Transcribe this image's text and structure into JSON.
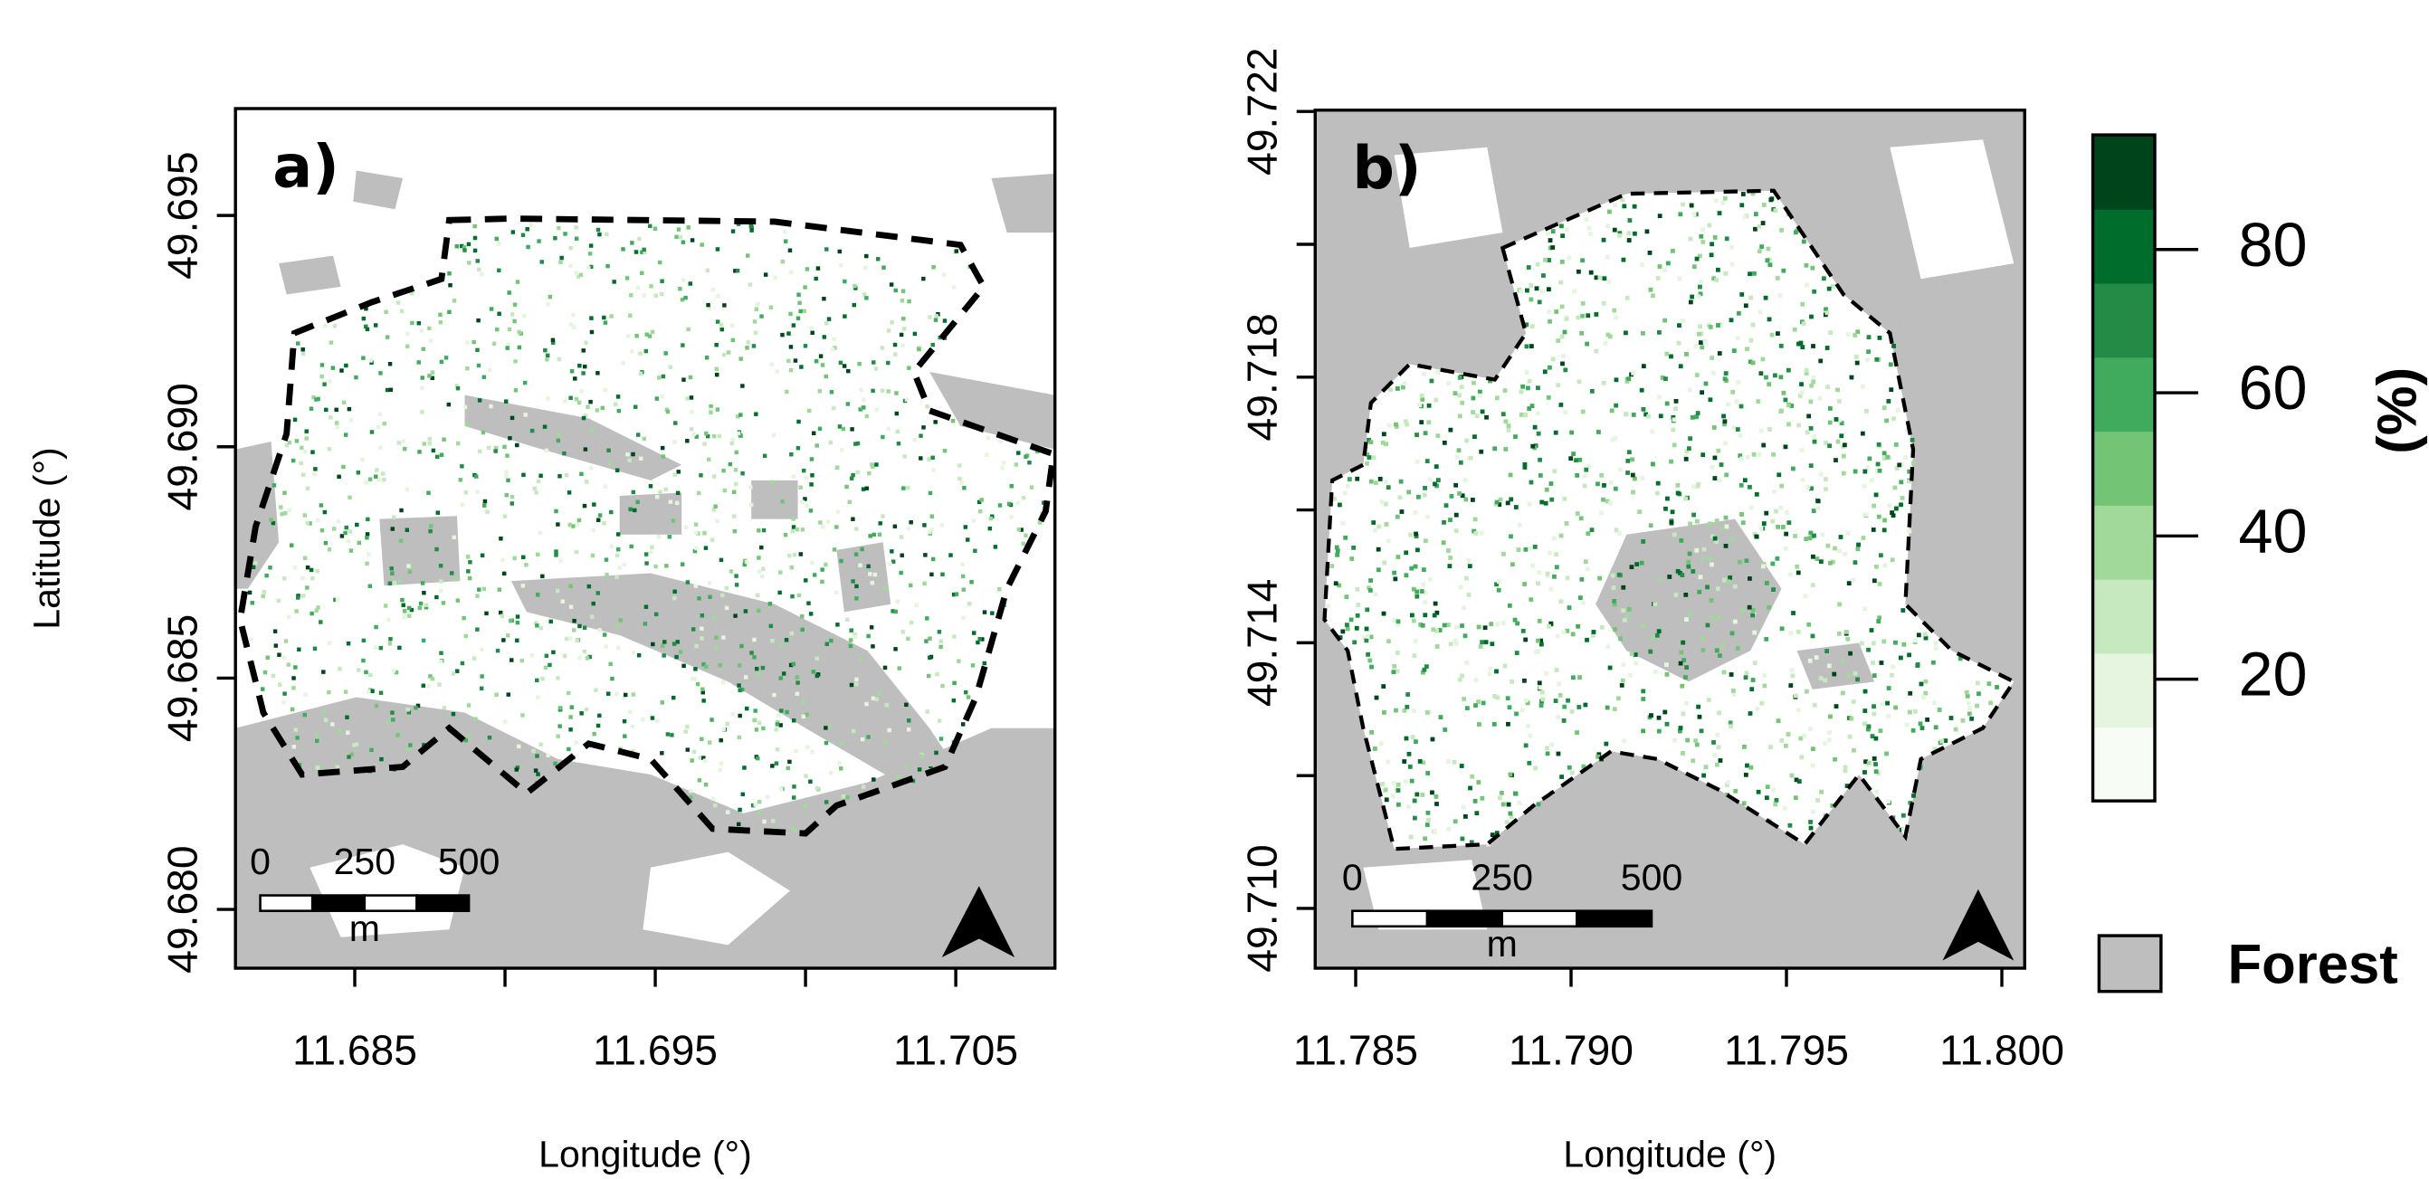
{
  "panels": [
    {
      "letter": "a)",
      "xlabel": "Longitude (°)",
      "ylabel": "Latitude (°)",
      "xlim": [
        11.68103,
        11.7083
      ],
      "ylim": [
        49.67873,
        49.69731
      ],
      "xticks": [
        11.685,
        11.695,
        11.705
      ],
      "xticks_minor": [
        11.69,
        11.7
      ],
      "yticks": [
        {
          "value": 49.68,
          "label": "49.680"
        },
        49.685,
        {
          "value": 49.69,
          "label": "49.690"
        },
        49.695
      ],
      "yticks_minor": [],
      "scalebar": {
        "ticks": [
          0,
          250,
          500
        ],
        "unit": "m"
      }
    },
    {
      "letter": "b)",
      "xlabel": "Longitude (°)",
      "xlim": [
        11.78406,
        11.80053
      ],
      "ylim": [
        49.7091,
        49.72202
      ],
      "xticks": [
        11.785,
        {
          "value": 11.79,
          "label": "11.790"
        },
        11.795,
        {
          "value": 11.8,
          "label": "11.800"
        }
      ],
      "xticks_minor": [],
      "yticks": [
        {
          "value": 49.71,
          "label": "49.710"
        },
        49.714,
        49.718,
        49.722
      ],
      "yticks_minor": [
        49.712,
        49.716,
        49.72
      ],
      "scalebar": {
        "ticks": [
          0,
          250,
          500
        ],
        "unit": "m"
      }
    }
  ],
  "legend": {
    "label": "(%)",
    "ticks": [
      20,
      40,
      60,
      80
    ],
    "lim": [
      3,
      96
    ],
    "colors": [
      "#f7fcf5",
      "#e5f5e0",
      "#c7e9c0",
      "#a1d99b",
      "#74c476",
      "#41ab5d",
      "#238b45",
      "#006d2c",
      "#00441b"
    ],
    "forest_label": "Forest",
    "forest_color": "#bebebe"
  }
}
